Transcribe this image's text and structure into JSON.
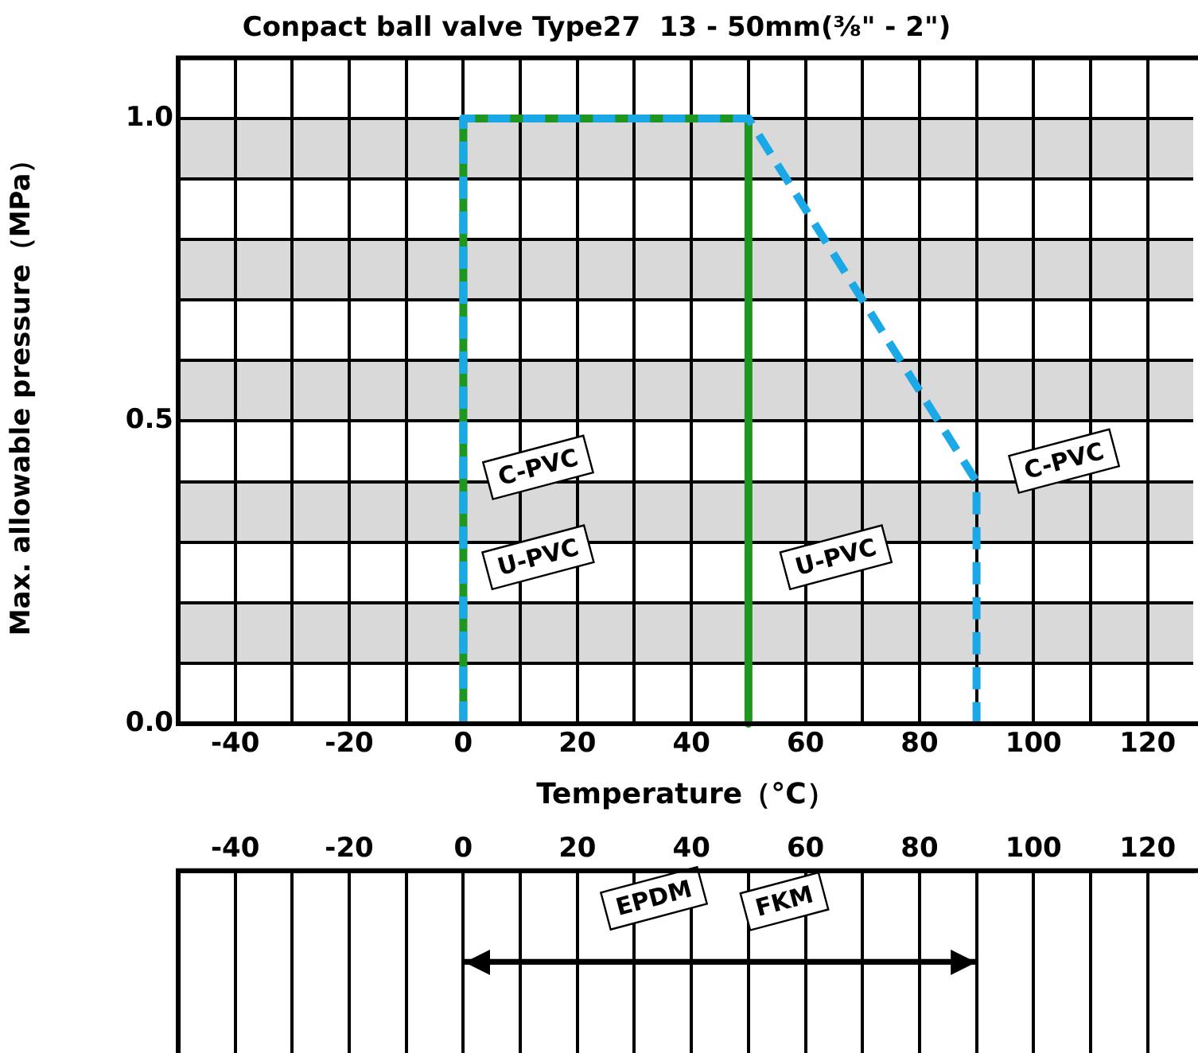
{
  "chart_data": [
    {
      "type": "line",
      "title": "Conpact ball valve Type27  13 - 50mm(⅜\" - 2\")",
      "xlabel": "Temperature（°C）",
      "ylabel": "Max. allowable pressure（MPa）",
      "series": [
        {
          "name": "C-PVC",
          "x": [
            0,
            0,
            50,
            90,
            90
          ],
          "values": [
            0,
            1,
            1,
            0.4,
            0
          ],
          "color": "#1aa9e6",
          "line_style": "dashed"
        },
        {
          "name": "U-PVC",
          "x": [
            0,
            0,
            50,
            50
          ],
          "values": [
            0,
            1,
            1,
            0
          ],
          "color": "#1f961f",
          "line_style": "solid"
        }
      ],
      "xlim": [
        -50,
        128
      ],
      "xticks": [
        {
          "value": -50,
          "label": null
        },
        -40,
        {
          "value": -30,
          "label": null
        },
        -20,
        {
          "value": -10,
          "label": null
        },
        0,
        {
          "value": 10,
          "label": null
        },
        20,
        {
          "value": 30,
          "label": null
        },
        40,
        {
          "value": 50,
          "label": null
        },
        60,
        {
          "value": 70,
          "label": null
        },
        80,
        {
          "value": 90,
          "label": null
        },
        100,
        {
          "value": 110,
          "label": null
        },
        120
      ],
      "ylim": [
        0,
        1.1
      ],
      "yticks": [
        {
          "value": 0,
          "label": "0.0"
        },
        {
          "value": 0.1,
          "label": null
        },
        {
          "value": 0.2,
          "label": null
        },
        {
          "value": 0.3,
          "label": null
        },
        {
          "value": 0.4,
          "label": null
        },
        {
          "value": 0.5,
          "label": "0.5"
        },
        {
          "value": 0.6,
          "label": null
        },
        {
          "value": 0.7,
          "label": null
        },
        {
          "value": 0.8,
          "label": null
        },
        {
          "value": 0.9,
          "label": null
        },
        {
          "value": 1,
          "label": "1.0"
        }
      ],
      "bands": [
        {
          "axis": "y",
          "from": 0.1,
          "to": 0.2,
          "color": "#d9d9d9"
        },
        {
          "axis": "y",
          "from": 0.3,
          "to": 0.4,
          "color": "#d9d9d9"
        },
        {
          "axis": "y",
          "from": 0.5,
          "to": 0.6,
          "color": "#d9d9d9"
        },
        {
          "axis": "y",
          "from": 0.7,
          "to": 0.8,
          "color": "#d9d9d9"
        },
        {
          "axis": "y",
          "from": 0.9,
          "to": 1.0,
          "color": "#d9d9d9"
        }
      ],
      "grid": true,
      "legend": false,
      "marker": "none"
    },
    {
      "type": "bar",
      "orientation": "horizontal",
      "categories": [
        null
      ],
      "base": [
        0
      ],
      "values": [
        90
      ],
      "color": "#000000",
      "xlim": [
        -50,
        128
      ],
      "xticks": [
        {
          "value": -50,
          "label": null
        },
        -40,
        {
          "value": -30,
          "label": null
        },
        -20,
        {
          "value": -10,
          "label": null
        },
        0,
        {
          "value": 10,
          "label": null
        },
        20,
        {
          "value": 30,
          "label": null
        },
        40,
        {
          "value": 50,
          "label": null
        },
        60,
        {
          "value": 70,
          "label": null
        },
        80,
        {
          "value": 90,
          "label": null
        },
        100,
        {
          "value": 110,
          "label": null
        },
        120
      ],
      "annotations": [
        "EPDM",
        "FKM"
      ],
      "grid": "x",
      "tick_labels": "x",
      "legend": false
    }
  ]
}
